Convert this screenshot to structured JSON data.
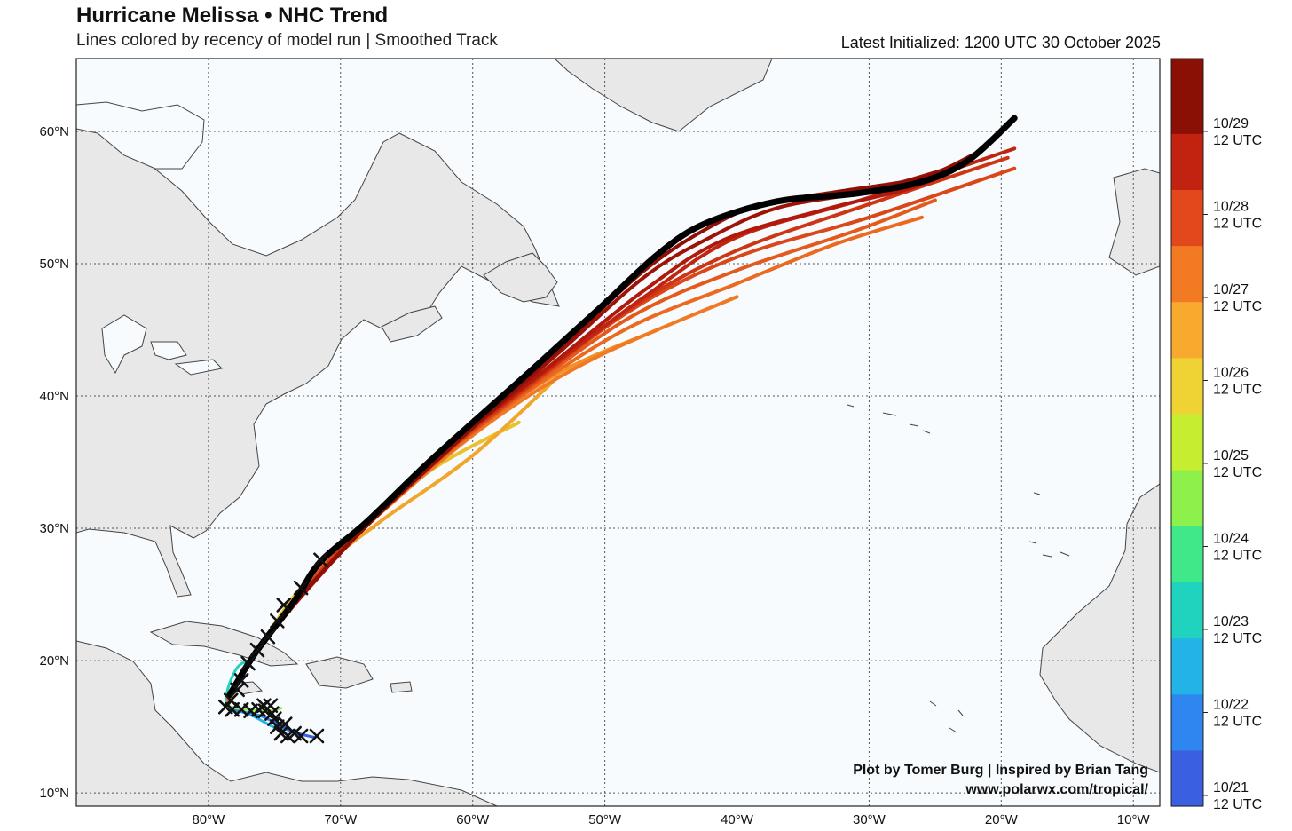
{
  "header": {
    "title": "Hurricane Melissa • NHC Trend",
    "subtitle": "Lines colored by recency of model run | Smoothed Track",
    "latest": "Latest Initialized: 1200 UTC 30 October 2025"
  },
  "credits": {
    "line1": "Plot by Tomer Burg | Inspired by Brian Tang",
    "line2": "www.polarwx.com/tropical/"
  },
  "axes": {
    "lat_labels": [
      "10°N",
      "20°N",
      "30°N",
      "40°N",
      "50°N",
      "60°N"
    ],
    "lon_labels": [
      "80°W",
      "70°W",
      "60°W",
      "50°W",
      "40°W",
      "30°W",
      "20°W",
      "10°W"
    ],
    "lat_values": [
      10,
      20,
      30,
      40,
      50,
      60
    ],
    "lon_values": [
      -80,
      -70,
      -60,
      -50,
      -40,
      -30,
      -20,
      -10
    ],
    "lon_range": [
      -90,
      -8
    ],
    "lat_range": [
      9,
      65.5
    ],
    "grid": "dotted"
  },
  "colorbar": {
    "labels": [
      {
        "date": "10/29",
        "time": "12 UTC"
      },
      {
        "date": "10/28",
        "time": "12 UTC"
      },
      {
        "date": "10/27",
        "time": "12 UTC"
      },
      {
        "date": "10/26",
        "time": "12 UTC"
      },
      {
        "date": "10/25",
        "time": "12 UTC"
      },
      {
        "date": "10/24",
        "time": "12 UTC"
      },
      {
        "date": "10/23",
        "time": "12 UTC"
      },
      {
        "date": "10/22",
        "time": "12 UTC"
      },
      {
        "date": "10/21",
        "time": "12 UTC"
      }
    ],
    "colors": [
      "#3a5fe0",
      "#2f86ee",
      "#22b4e6",
      "#1fd3bf",
      "#3fe98a",
      "#8ef04a",
      "#c6ee30",
      "#efd233",
      "#f8aa2e",
      "#f27a22",
      "#e2481b",
      "#c22310",
      "#8a0f04"
    ]
  },
  "colors": {
    "land": "#e8e8e8",
    "ocean": "#f7fbfd",
    "coast": "#444444",
    "latest_track": "#000000",
    "marker": "#111111"
  },
  "chart_data": {
    "type": "map-tracks",
    "tracks": [
      {
        "color": "#e9c02e",
        "points": [
          [
            -78.5,
            16.7
          ],
          [
            -77.5,
            19
          ],
          [
            -75.5,
            22
          ],
          [
            -73,
            25.5
          ],
          [
            -69,
            29.5
          ],
          [
            -63,
            34.5
          ],
          [
            -56.5,
            38
          ]
        ]
      },
      {
        "color": "#f1a52a",
        "points": [
          [
            -78.5,
            16.8
          ],
          [
            -77.3,
            19.3
          ],
          [
            -75,
            22.5
          ],
          [
            -72,
            26.5
          ],
          [
            -67,
            30.5
          ],
          [
            -60,
            35.5
          ],
          [
            -53.5,
            41.5
          ]
        ]
      },
      {
        "color": "#f39128",
        "points": [
          [
            -78.5,
            16.9
          ],
          [
            -77.2,
            19.5
          ],
          [
            -74.8,
            22.8
          ],
          [
            -71.5,
            27
          ],
          [
            -66,
            32
          ],
          [
            -59,
            38
          ],
          [
            -53,
            42
          ],
          [
            -46,
            45
          ]
        ]
      },
      {
        "color": "#f07a24",
        "points": [
          [
            -78.5,
            17
          ],
          [
            -77,
            19.7
          ],
          [
            -74.5,
            23
          ],
          [
            -71,
            27.5
          ],
          [
            -65.5,
            32.5
          ],
          [
            -58,
            38.5
          ],
          [
            -50.5,
            43
          ],
          [
            -40,
            47.5
          ]
        ]
      },
      {
        "color": "#ec6a20",
        "points": [
          [
            -78.5,
            17.1
          ],
          [
            -77,
            19.9
          ],
          [
            -74.3,
            23.4
          ],
          [
            -70.5,
            28
          ],
          [
            -64.5,
            33.5
          ],
          [
            -57,
            39.5
          ],
          [
            -48.5,
            45
          ],
          [
            -40,
            48.5
          ],
          [
            -32.5,
            51.5
          ],
          [
            -26,
            53.5
          ]
        ]
      },
      {
        "color": "#e35a1c",
        "points": [
          [
            -78.5,
            17.2
          ],
          [
            -76.9,
            20
          ],
          [
            -74,
            23.6
          ],
          [
            -70,
            28.5
          ],
          [
            -64,
            34
          ],
          [
            -56.5,
            40
          ],
          [
            -48,
            46
          ],
          [
            -40,
            49.5
          ],
          [
            -31,
            52.5
          ],
          [
            -25,
            54.8
          ]
        ]
      },
      {
        "color": "#da4718",
        "points": [
          [
            -78.5,
            17.3
          ],
          [
            -76.8,
            20.2
          ],
          [
            -73.8,
            24
          ],
          [
            -69.5,
            29
          ],
          [
            -63.5,
            34.5
          ],
          [
            -56,
            40.5
          ],
          [
            -48,
            46.5
          ],
          [
            -40,
            50.5
          ],
          [
            -30,
            53.5
          ],
          [
            -19,
            57.2
          ]
        ]
      },
      {
        "color": "#cd3514",
        "points": [
          [
            -78.4,
            17.3
          ],
          [
            -76.7,
            20.3
          ],
          [
            -73.6,
            24.2
          ],
          [
            -69.2,
            29.2
          ],
          [
            -63,
            35
          ],
          [
            -55.5,
            41
          ],
          [
            -47.5,
            47
          ],
          [
            -40,
            51
          ],
          [
            -30,
            54.5
          ],
          [
            -19.5,
            58
          ]
        ]
      },
      {
        "color": "#bf2510",
        "points": [
          [
            -78.4,
            17.4
          ],
          [
            -76.6,
            20.4
          ],
          [
            -73.4,
            24.4
          ],
          [
            -68.8,
            29.5
          ],
          [
            -62.5,
            35.5
          ],
          [
            -55,
            41.5
          ],
          [
            -47,
            47.5
          ],
          [
            -40,
            52
          ],
          [
            -30,
            55
          ],
          [
            -19,
            58.7
          ]
        ]
      },
      {
        "color": "#b0190b",
        "points": [
          [
            -78.3,
            17.4
          ],
          [
            -76.5,
            20.5
          ],
          [
            -73.2,
            24.6
          ],
          [
            -68.5,
            29.8
          ],
          [
            -62,
            36
          ],
          [
            -54.5,
            42
          ],
          [
            -47,
            48
          ],
          [
            -41,
            51.8
          ],
          [
            -33,
            54.2
          ],
          [
            -26,
            56
          ],
          [
            -21.5,
            58.5
          ]
        ]
      },
      {
        "color": "#9e1308",
        "points": [
          [
            -78.3,
            17.5
          ],
          [
            -76.4,
            20.6
          ],
          [
            -73,
            24.8
          ],
          [
            -68.2,
            30
          ],
          [
            -61.5,
            36.3
          ],
          [
            -54,
            42.8
          ],
          [
            -47,
            49
          ],
          [
            -42,
            52
          ],
          [
            -37,
            54.2
          ],
          [
            -30,
            55.5
          ],
          [
            -23,
            57.5
          ]
        ]
      },
      {
        "color": "#8e0f05",
        "points": [
          [
            -78.3,
            17.5
          ],
          [
            -76.3,
            20.7
          ],
          [
            -72.9,
            25
          ],
          [
            -68,
            30.2
          ],
          [
            -61.2,
            36.5
          ],
          [
            -53.5,
            43.5
          ],
          [
            -47,
            49.5
          ],
          [
            -42,
            52.8
          ],
          [
            -38,
            54.5
          ],
          [
            -32,
            55.5
          ],
          [
            -26,
            56.5
          ],
          [
            -22,
            58.3
          ]
        ]
      }
    ],
    "latest_track": [
      [
        -78.4,
        17.4
      ],
      [
        -76.5,
        20.5
      ],
      [
        -73.5,
        24.5
      ],
      [
        -71.5,
        27.5
      ],
      [
        -68,
        30.5
      ],
      [
        -63,
        35.3
      ],
      [
        -55.5,
        42
      ],
      [
        -50,
        47
      ],
      [
        -46,
        50.7
      ],
      [
        -42.5,
        53
      ],
      [
        -37,
        54.7
      ],
      [
        -31,
        55.3
      ],
      [
        -26,
        56.2
      ],
      [
        -22.5,
        57.8
      ],
      [
        -19,
        61
      ]
    ],
    "early_tracks": [
      {
        "color": "#1fd3bf",
        "points": [
          [
            -78.7,
            16.6
          ],
          [
            -78.5,
            18
          ],
          [
            -77.8,
            19.5
          ],
          [
            -77,
            20
          ]
        ]
      },
      {
        "color": "#3fe98a",
        "points": [
          [
            -78.6,
            16.6
          ],
          [
            -78.2,
            17.8
          ],
          [
            -77.5,
            19.2
          ]
        ]
      },
      {
        "color": "#22b4e6",
        "points": [
          [
            -74,
            14.4
          ],
          [
            -75.5,
            15.2
          ],
          [
            -77,
            16
          ],
          [
            -78.6,
            16.6
          ]
        ]
      },
      {
        "color": "#2f86ee",
        "points": [
          [
            -73,
            14.3
          ],
          [
            -74.5,
            15
          ],
          [
            -76,
            15.8
          ],
          [
            -78.5,
            16.3
          ]
        ]
      },
      {
        "color": "#3a5fe0",
        "points": [
          [
            -72,
            14.2
          ],
          [
            -73.5,
            14.6
          ],
          [
            -75,
            15.4
          ]
        ]
      },
      {
        "color": "#8ef04a",
        "points": [
          [
            -78.5,
            16.5
          ],
          [
            -77,
            16.3
          ],
          [
            -75.5,
            16.2
          ],
          [
            -74.5,
            16.4
          ]
        ]
      }
    ],
    "markers": [
      [
        -71.5,
        27.6
      ],
      [
        -73,
        25.5
      ],
      [
        -74.3,
        24.2
      ],
      [
        -74.8,
        23
      ],
      [
        -75.5,
        21.8
      ],
      [
        -76.3,
        20.8
      ],
      [
        -77,
        19.8
      ],
      [
        -77.5,
        18.5
      ],
      [
        -77.8,
        17.8
      ],
      [
        -78.3,
        17
      ],
      [
        -78.7,
        16.5
      ],
      [
        -78.2,
        16.3
      ],
      [
        -77.5,
        16.3
      ],
      [
        -76.8,
        16.2
      ],
      [
        -76.2,
        16.3
      ],
      [
        -75.7,
        16.2
      ],
      [
        -75.2,
        16
      ],
      [
        -75,
        15.6
      ],
      [
        -75.3,
        16.6
      ],
      [
        -74.8,
        15
      ],
      [
        -74.5,
        14.5
      ],
      [
        -74,
        14.3
      ],
      [
        -73.5,
        14.5
      ],
      [
        -73,
        14.3
      ],
      [
        -71.8,
        14.3
      ],
      [
        -75.8,
        16.6
      ],
      [
        -74.2,
        15.2
      ]
    ]
  }
}
